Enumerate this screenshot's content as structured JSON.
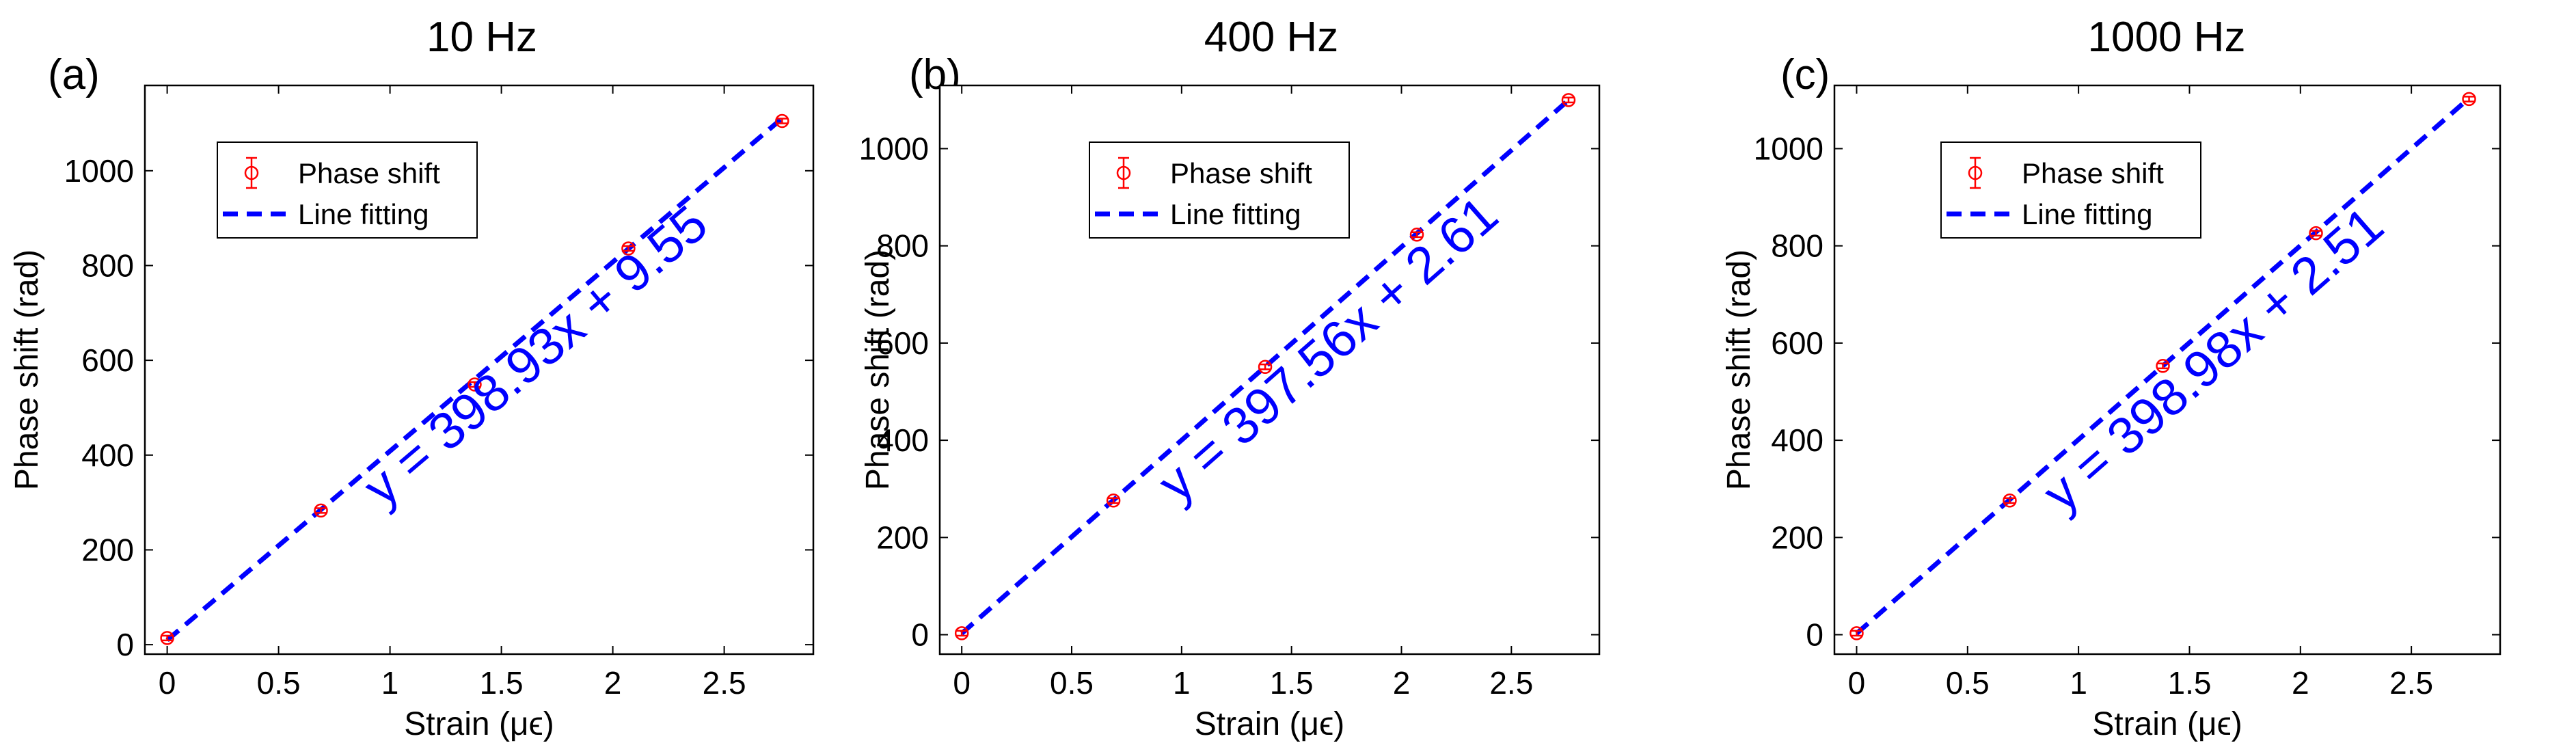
{
  "chart_data": [
    {
      "type": "scatter",
      "letter": "(a)",
      "title": "10 Hz",
      "xlabel": "Strain (μϵ)",
      "ylabel": "Phase shift (rad)",
      "xlim": [
        -0.1,
        2.9
      ],
      "ylim": [
        -20,
        1180
      ],
      "xticks": [
        0,
        0.5,
        1,
        1.5,
        2,
        2.5
      ],
      "xtick_labels": [
        "0",
        "0.5",
        "1",
        "1.5",
        "2",
        "2.5"
      ],
      "yticks": [
        0,
        200,
        400,
        600,
        800,
        1000
      ],
      "ytick_labels": [
        "0",
        "200",
        "400",
        "600",
        "800",
        "1000"
      ],
      "legend": [
        "Phase shift",
        "Line fitting"
      ],
      "legend_position": "top-left",
      "series": [
        {
          "name": "Phase shift",
          "x": [
            0,
            0.69,
            1.38,
            2.07,
            2.76
          ],
          "y": [
            14,
            283,
            549,
            836,
            1105
          ],
          "error": [
            5,
            5,
            5,
            5,
            5
          ]
        },
        {
          "name": "Line fitting",
          "slope": 398.93,
          "intercept": 9.55,
          "x_range": [
            0,
            2.76
          ]
        }
      ],
      "annotation": "y = 398.93x + 9.55"
    },
    {
      "type": "scatter",
      "letter": "(b)",
      "title": "400 Hz",
      "xlabel": "Strain (μϵ)",
      "ylabel": "Phase shift (rad)",
      "xlim": [
        -0.1,
        2.9
      ],
      "ylim": [
        -40,
        1130
      ],
      "xticks": [
        0,
        0.5,
        1,
        1.5,
        2,
        2.5
      ],
      "xtick_labels": [
        "0",
        "0.5",
        "1",
        "1.5",
        "2",
        "2.5"
      ],
      "yticks": [
        0,
        200,
        400,
        600,
        800,
        1000
      ],
      "ytick_labels": [
        "0",
        "200",
        "400",
        "600",
        "800",
        "1000"
      ],
      "legend": [
        "Phase shift",
        "Line fitting"
      ],
      "legend_position": "top-left",
      "series": [
        {
          "name": "Phase shift",
          "x": [
            0,
            0.69,
            1.38,
            2.07,
            2.76
          ],
          "y": [
            3,
            276,
            551,
            823,
            1100
          ],
          "error": [
            5,
            5,
            5,
            5,
            5
          ]
        },
        {
          "name": "Line fitting",
          "slope": 397.56,
          "intercept": 2.61,
          "x_range": [
            0,
            2.76
          ]
        }
      ],
      "annotation": "y = 397.56x + 2.61"
    },
    {
      "type": "scatter",
      "letter": "(c)",
      "title": "1000 Hz",
      "xlabel": "Strain (μϵ)",
      "ylabel": "Phase shift (rad)",
      "xlim": [
        -0.1,
        2.9
      ],
      "ylim": [
        -40,
        1130
      ],
      "xticks": [
        0,
        0.5,
        1,
        1.5,
        2,
        2.5
      ],
      "xtick_labels": [
        "0",
        "0.5",
        "1",
        "1.5",
        "2",
        "2.5"
      ],
      "yticks": [
        0,
        200,
        400,
        600,
        800,
        1000
      ],
      "ytick_labels": [
        "0",
        "200",
        "400",
        "600",
        "800",
        "1000"
      ],
      "legend": [
        "Phase shift",
        "Line fitting"
      ],
      "legend_position": "top-left",
      "series": [
        {
          "name": "Phase shift",
          "x": [
            0,
            0.69,
            1.38,
            2.07,
            2.76
          ],
          "y": [
            3,
            276,
            553,
            826,
            1102
          ],
          "error": [
            5,
            5,
            5,
            5,
            5
          ]
        },
        {
          "name": "Line fitting",
          "slope": 398.98,
          "intercept": 2.51,
          "x_range": [
            0,
            2.76
          ]
        }
      ],
      "annotation": "y = 398.98x + 2.51"
    }
  ],
  "colors": {
    "marker": "#ff0000",
    "fit_line": "#0000ff",
    "annotation": "#0000ff",
    "axes": "#000000"
  }
}
